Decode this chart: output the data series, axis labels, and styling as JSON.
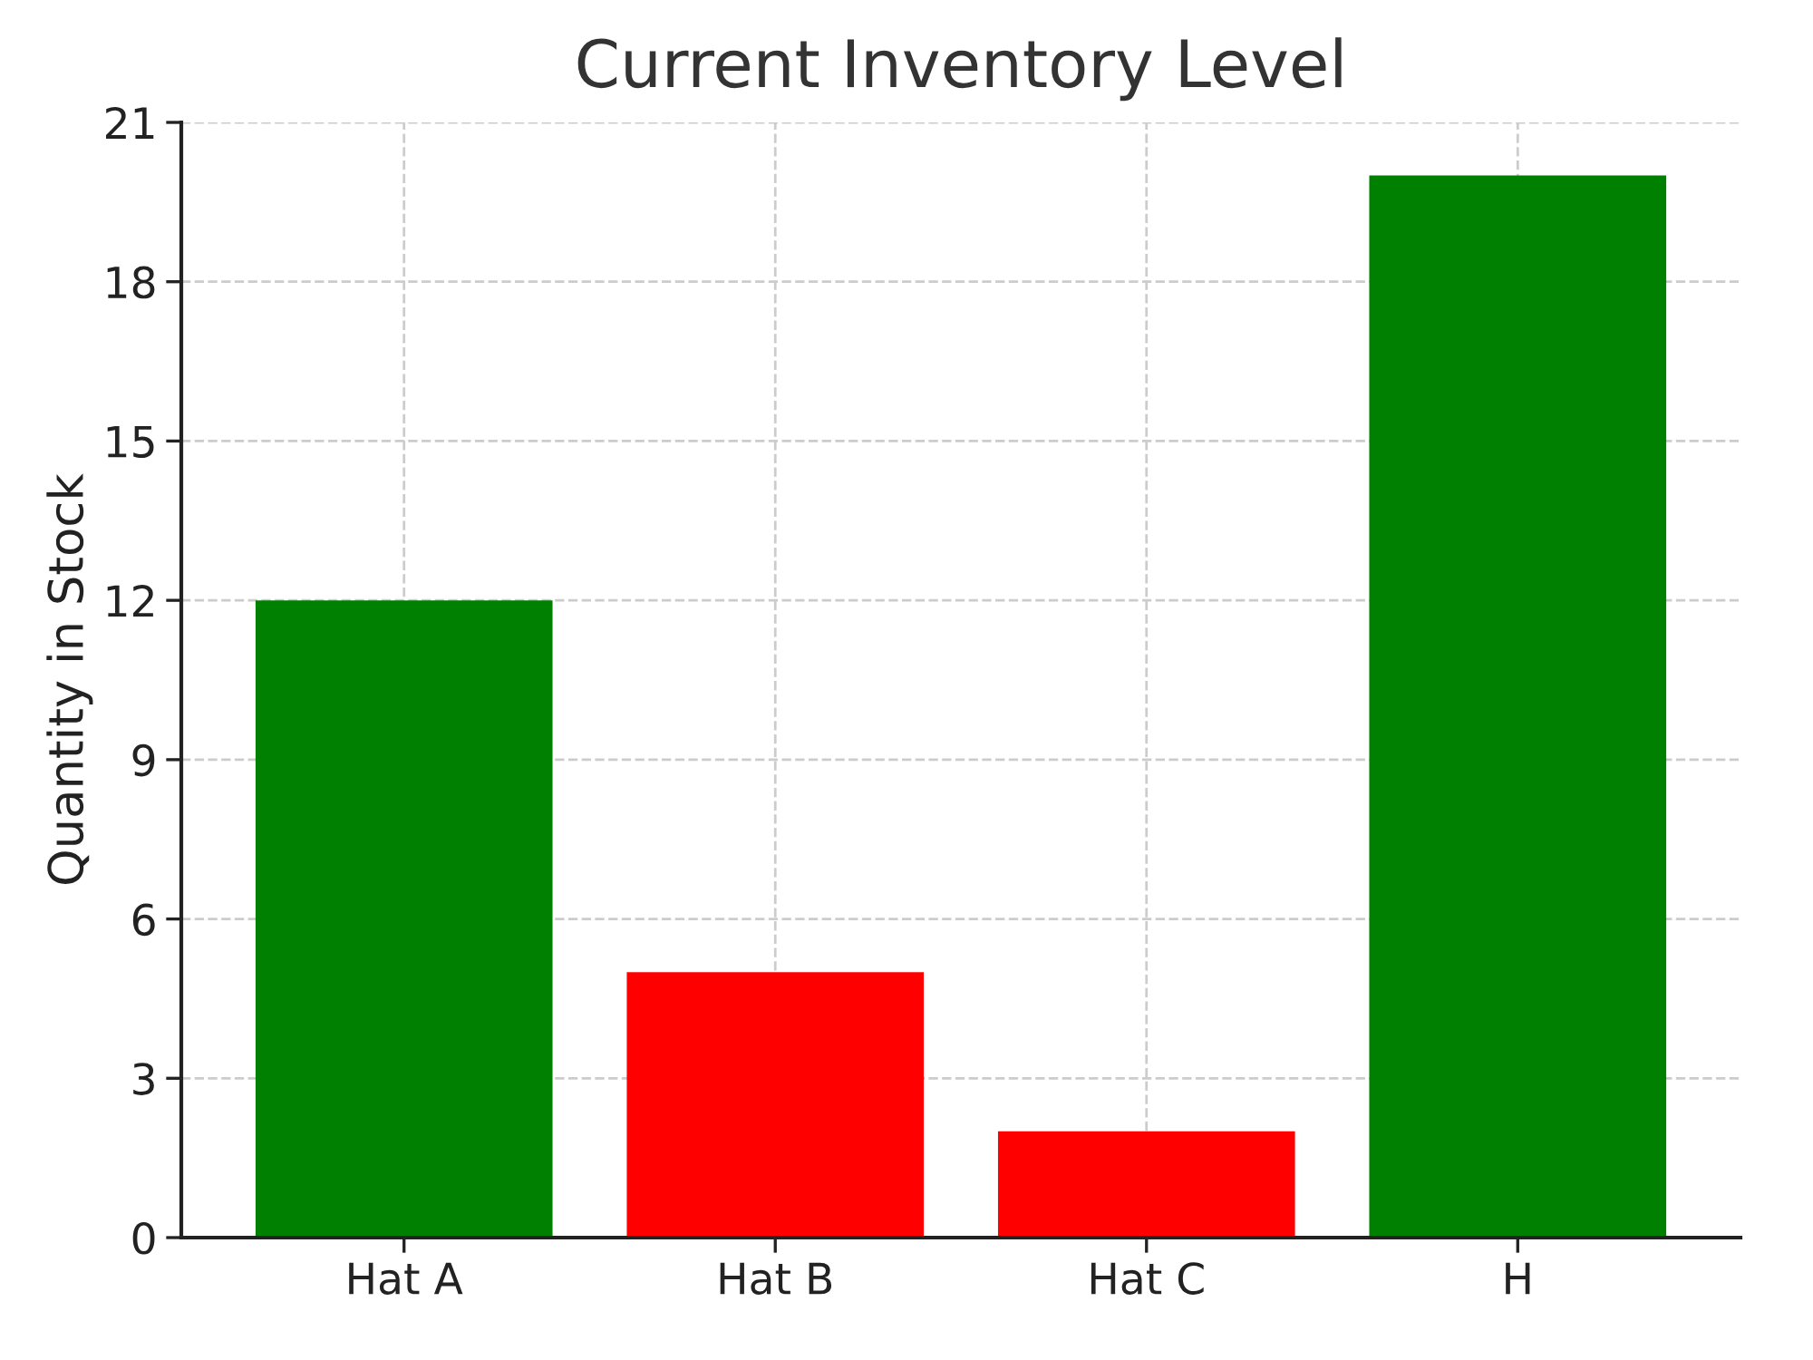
{
  "chart_data": {
    "type": "bar",
    "title": "Current Inventory Level",
    "ylabel": "Quantity in Stock",
    "categories": [
      "Hat A",
      "Hat B",
      "Hat C",
      "H"
    ],
    "values": [
      12,
      5,
      2,
      20
    ],
    "colors": [
      "#008000",
      "#ff0000",
      "#ff0000",
      "#008000"
    ],
    "ylim": [
      0,
      21
    ],
    "yticks": [
      0,
      3,
      6,
      9,
      12,
      15,
      18,
      21
    ],
    "grid": true
  }
}
